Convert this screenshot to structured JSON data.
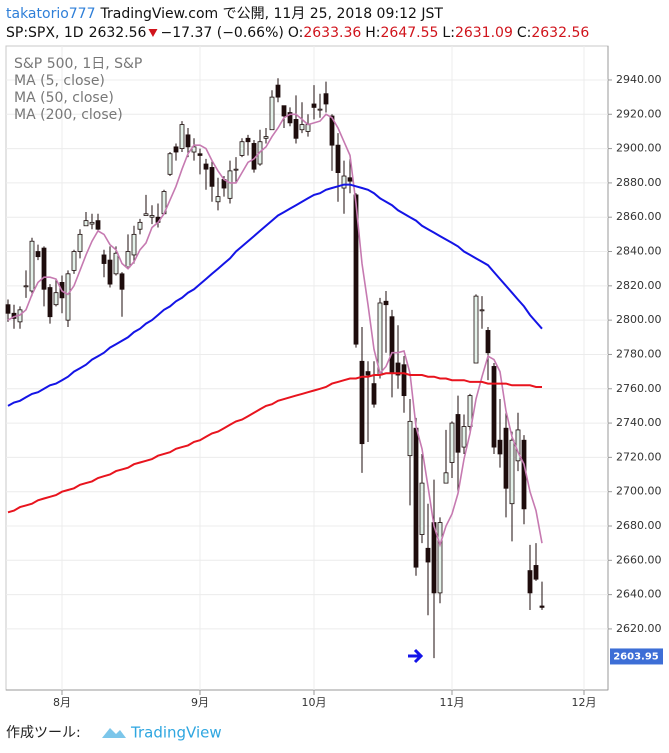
{
  "chart_data": {
    "type": "candlestick",
    "header": {
      "publisher": "takatorio777",
      "published": "TradingView.com で公開, 11月 25, 2018 09:12 JST",
      "symbol": "SP:SPX, 1D",
      "last": 2632.56,
      "change": "−17.37 (−0.66%)",
      "quote": [
        {
          "label": "O:",
          "value": 2633.36
        },
        {
          "label": "H:",
          "value": 2647.55
        },
        {
          "label": "L:",
          "value": 2631.09
        },
        {
          "label": "C:",
          "value": 2632.56
        }
      ]
    },
    "title": "S&P 500, 1日, S&P",
    "up_color": "#e4f2ea",
    "down_color": "#1e0d0d",
    "open": [
      2809,
      2804,
      2799,
      2820,
      2817,
      2840,
      2842,
      2819,
      2809,
      2822,
      2800,
      2829,
      2840,
      2855,
      2856,
      2858,
      2838,
      2835,
      2827,
      2827,
      2831,
      2838,
      2853,
      2861,
      2860,
      2860,
      2862,
      2885,
      2901,
      2900,
      2908,
      2898,
      2897,
      2891,
      2889,
      2869,
      2882,
      2871,
      2888,
      2896,
      2906,
      2903,
      2891,
      2906,
      2911,
      2937,
      2925,
      2921,
      2917,
      2911,
      2910,
      2926,
      2923,
      2932,
      2919,
      2902,
      2877,
      2883,
      2873,
      2776,
      2770,
      2763,
      2768,
      2811,
      2802,
      2775,
      2774,
      2721,
      2737,
      2675,
      2667,
      2682,
      2641,
      2705,
      2717,
      2745,
      2726,
      2738,
      2775,
      2806,
      2794,
      2773,
      2730,
      2737,
      2693,
      2718,
      2730,
      2654,
      2657,
      2633.36
    ],
    "high": [
      2812,
      2809,
      2808,
      2829,
      2848,
      2844,
      2843,
      2821,
      2824,
      2826,
      2829,
      2841,
      2853,
      2863,
      2862,
      2862,
      2841,
      2843,
      2843,
      2828,
      2850,
      2855,
      2859,
      2873,
      2867,
      2868,
      2876,
      2898,
      2903,
      2916,
      2912,
      2906,
      2900,
      2894,
      2893,
      2883,
      2884,
      2893,
      2895,
      2906,
      2908,
      2905,
      2911,
      2912,
      2934,
      2941,
      2925,
      2924,
      2931,
      2927,
      2920,
      2937,
      2932,
      2939,
      2920,
      2909,
      2893,
      2894,
      2874,
      2796,
      2776,
      2776,
      2813,
      2817,
      2806,
      2797,
      2779,
      2754,
      2743,
      2722,
      2693,
      2707,
      2685,
      2736,
      2741,
      2756,
      2745,
      2757,
      2815,
      2814,
      2796,
      2775,
      2754,
      2747,
      2735,
      2746,
      2733,
      2669,
      2670,
      2647.55
    ],
    "low": [
      2799,
      2795,
      2795,
      2813,
      2814,
      2835,
      2808,
      2798,
      2808,
      2804,
      2796,
      2827,
      2836,
      2855,
      2853,
      2852,
      2825,
      2819,
      2826,
      2802,
      2831,
      2833,
      2850,
      2861,
      2856,
      2854,
      2862,
      2884,
      2893,
      2898,
      2895,
      2893,
      2885,
      2876,
      2869,
      2864,
      2872,
      2868,
      2880,
      2895,
      2896,
      2886,
      2890,
      2903,
      2911,
      2927,
      2912,
      2913,
      2903,
      2909,
      2907,
      2917,
      2918,
      2921,
      2887,
      2869,
      2862,
      2874,
      2784,
      2711,
      2729,
      2749,
      2766,
      2781,
      2755,
      2760,
      2746,
      2692,
      2651,
      2670,
      2628,
      2603,
      2635,
      2705,
      2708,
      2700,
      2722,
      2735,
      2775,
      2795,
      2765,
      2722,
      2714,
      2685,
      2671,
      2712,
      2681,
      2631,
      2648,
      2631.09
    ],
    "close": [
      2804,
      2801,
      2806,
      2820,
      2846,
      2837,
      2818,
      2802,
      2816,
      2813,
      2827,
      2840,
      2850,
      2858,
      2857,
      2853,
      2833,
      2821,
      2839,
      2818,
      2840,
      2850,
      2857,
      2862,
      2861,
      2857,
      2875,
      2897,
      2898,
      2914,
      2901,
      2901,
      2896,
      2888,
      2878,
      2872,
      2877,
      2887,
      2888,
      2904,
      2904,
      2888,
      2904,
      2907,
      2930,
      2930,
      2919,
      2915,
      2906,
      2914,
      2914,
      2924,
      2923,
      2926,
      2902,
      2886,
      2884,
      2881,
      2786,
      2728,
      2768,
      2751,
      2810,
      2809,
      2769,
      2768,
      2756,
      2741,
      2656,
      2705,
      2659,
      2641,
      2682,
      2711,
      2740,
      2723,
      2738,
      2756,
      2814,
      2806,
      2781,
      2726,
      2722,
      2702,
      2730,
      2736,
      2690,
      2641,
      2649,
      2632.56
    ],
    "series": [
      {
        "name": "MA (5, close)",
        "color": "#c67ab1",
        "values": [
          2800,
          2802,
          2803,
          2806,
          2815,
          2822,
          2825,
          2825,
          2824,
          2817,
          2815,
          2820,
          2829,
          2838,
          2846,
          2852,
          2850,
          2844,
          2841,
          2833,
          2830,
          2834,
          2841,
          2845,
          2854,
          2857,
          2862,
          2870,
          2878,
          2888,
          2897,
          2902,
          2902,
          2900,
          2893,
          2887,
          2882,
          2880,
          2880,
          2886,
          2892,
          2894,
          2898,
          2901,
          2907,
          2912,
          2918,
          2920,
          2920,
          2917,
          2914,
          2915,
          2916,
          2920,
          2918,
          2912,
          2904,
          2896,
          2868,
          2833,
          2809,
          2783,
          2769,
          2773,
          2781,
          2781,
          2782,
          2769,
          2738,
          2725,
          2703,
          2680,
          2669,
          2680,
          2687,
          2699,
          2719,
          2734,
          2754,
          2767,
          2779,
          2777,
          2770,
          2747,
          2732,
          2723,
          2716,
          2700,
          2689,
          2670
        ]
      },
      {
        "name": "MA (50, close)",
        "color": "#1414e6",
        "values": [
          2750,
          2752,
          2753,
          2755,
          2757,
          2758,
          2760,
          2762,
          2763,
          2765,
          2767,
          2770,
          2772,
          2774,
          2777,
          2779,
          2781,
          2784,
          2786,
          2788,
          2790,
          2793,
          2795,
          2798,
          2800,
          2803,
          2806,
          2808,
          2811,
          2813,
          2816,
          2818,
          2821,
          2824,
          2827,
          2830,
          2833,
          2836,
          2840,
          2843,
          2846,
          2849,
          2852,
          2855,
          2858,
          2861,
          2863,
          2865,
          2867,
          2869,
          2871,
          2873,
          2874,
          2876,
          2877,
          2878,
          2879,
          2879,
          2878,
          2877,
          2876,
          2874,
          2871,
          2869,
          2867,
          2864,
          2862,
          2860,
          2858,
          2855,
          2853,
          2851,
          2849,
          2847,
          2845,
          2843,
          2840,
          2838,
          2836,
          2834,
          2832,
          2828,
          2824,
          2820,
          2816,
          2812,
          2808,
          2803,
          2799,
          2795
        ]
      },
      {
        "name": "MA (200, close)",
        "color": "#e8141e",
        "values": [
          2688,
          2689,
          2691,
          2692,
          2693,
          2695,
          2696,
          2697,
          2698,
          2700,
          2701,
          2702,
          2704,
          2705,
          2706,
          2708,
          2709,
          2710,
          2712,
          2713,
          2714,
          2716,
          2717,
          2718,
          2719,
          2721,
          2722,
          2723,
          2725,
          2726,
          2727,
          2729,
          2730,
          2732,
          2734,
          2735,
          2737,
          2739,
          2741,
          2742,
          2744,
          2746,
          2748,
          2750,
          2751,
          2753,
          2754,
          2755,
          2756,
          2757,
          2758,
          2759,
          2760,
          2761,
          2763,
          2764,
          2765,
          2766,
          2766,
          2767,
          2767,
          2768,
          2768,
          2769,
          2769,
          2769,
          2769,
          2768,
          2768,
          2768,
          2767,
          2767,
          2766,
          2766,
          2765,
          2765,
          2765,
          2764,
          2764,
          2764,
          2763,
          2763,
          2763,
          2763,
          2762,
          2762,
          2762,
          2762,
          2761,
          2761
        ]
      }
    ],
    "xlim": [
      -0.5,
      99.5
    ],
    "xticks": [
      {
        "value": 9,
        "label": "8月"
      },
      {
        "value": 32,
        "label": "9月"
      },
      {
        "value": 51,
        "label": "10月"
      },
      {
        "value": 74,
        "label": "11月"
      },
      {
        "value": 96,
        "label": "12月"
      }
    ],
    "ylim": [
      2584.4,
      2959.8
    ],
    "yticks": [
      {
        "value": 2620,
        "label": "2620.00"
      },
      {
        "value": 2640,
        "label": "2640.00"
      },
      {
        "value": 2660,
        "label": "2660.00"
      },
      {
        "value": 2680,
        "label": "2680.00"
      },
      {
        "value": 2700,
        "label": "2700.00"
      },
      {
        "value": 2720,
        "label": "2720.00"
      },
      {
        "value": 2740,
        "label": "2740.00"
      },
      {
        "value": 2760,
        "label": "2760.00"
      },
      {
        "value": 2780,
        "label": "2780.00"
      },
      {
        "value": 2800,
        "label": "2800.00"
      },
      {
        "value": 2820,
        "label": "2820.00"
      },
      {
        "value": 2840,
        "label": "2840.00"
      },
      {
        "value": 2860,
        "label": "2860.00"
      },
      {
        "value": 2880,
        "label": "2880.00"
      },
      {
        "value": 2900,
        "label": "2900.00"
      },
      {
        "value": 2920,
        "label": "2920.00"
      },
      {
        "value": 2940,
        "label": "2940.00"
      }
    ],
    "grid": true,
    "price_marker": 2603.95,
    "footer": {
      "made_with": "作成ツール:",
      "brand": "TradingView"
    }
  }
}
